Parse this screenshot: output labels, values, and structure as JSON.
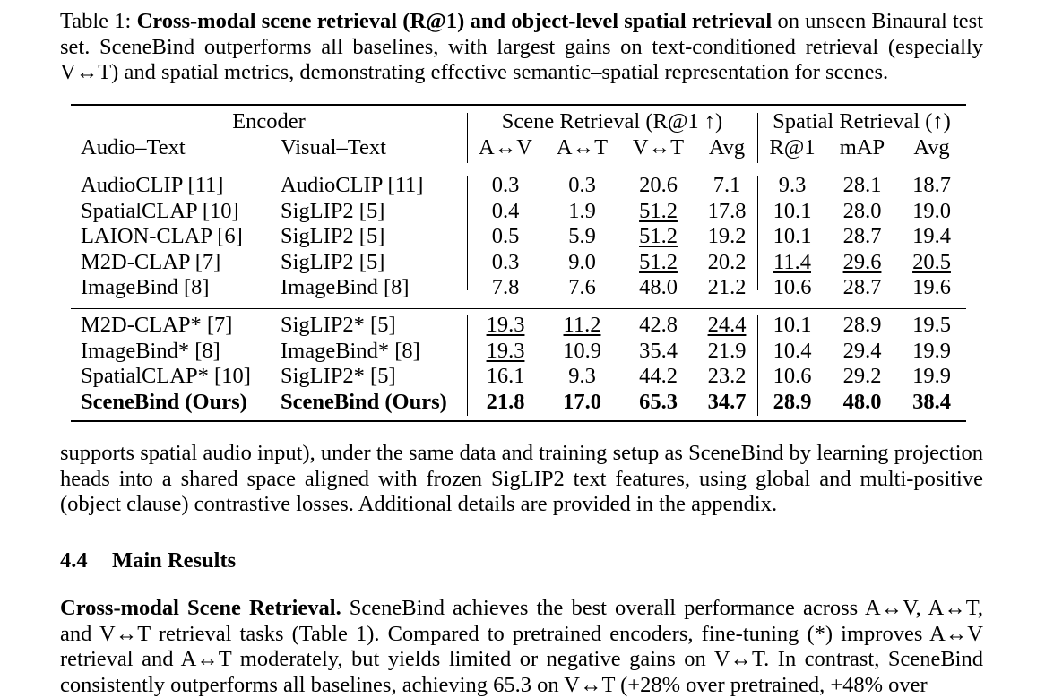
{
  "caption": {
    "label": "Table 1:",
    "bold_title": "Cross-modal scene retrieval (R@1) and object-level spatial retrieval",
    "rest": "on unseen Binaural test set. SceneBind outperforms all baselines, with largest gains on text-conditioned retrieval (especially V↔T) and spatial metrics, demonstrating effective semantic–spatial representation for scenes."
  },
  "table": {
    "group_headers": {
      "encoder": "Encoder",
      "scene": "Scene Retrieval (R@1 ↑)",
      "spatial": "Spatial Retrieval (↑)"
    },
    "columns": [
      "Audio–Text",
      "Visual–Text",
      "A↔V",
      "A↔T",
      "V↔T",
      "Avg",
      "R@1",
      "mAP",
      "Avg"
    ],
    "rows_pretrained": [
      {
        "audio": "AudioCLIP [11]",
        "visual": "AudioCLIP [11]",
        "av": "0.3",
        "at": "0.3",
        "vt": "20.6",
        "savg": "7.1",
        "r1": "9.3",
        "map": "28.1",
        "pavg": "18.7"
      },
      {
        "audio": "SpatialCLAP [10]",
        "visual": "SigLIP2 [5]",
        "av": "0.4",
        "at": "1.9",
        "vt": "51.2",
        "savg": "17.8",
        "r1": "10.1",
        "map": "28.0",
        "pavg": "19.0"
      },
      {
        "audio": "LAION-CLAP [6]",
        "visual": "SigLIP2 [5]",
        "av": "0.5",
        "at": "5.9",
        "vt": "51.2",
        "savg": "19.2",
        "r1": "10.1",
        "map": "28.7",
        "pavg": "19.4"
      },
      {
        "audio": "M2D-CLAP [7]",
        "visual": "SigLIP2 [5]",
        "av": "0.3",
        "at": "9.0",
        "vt": "51.2",
        "savg": "20.2",
        "r1": "11.4",
        "map": "29.6",
        "pavg": "20.5"
      },
      {
        "audio": "ImageBind [8]",
        "visual": "ImageBind [8]",
        "av": "7.8",
        "at": "7.6",
        "vt": "48.0",
        "savg": "21.2",
        "r1": "10.6",
        "map": "28.7",
        "pavg": "19.6"
      }
    ],
    "rows_finetuned": [
      {
        "audio": "M2D-CLAP* [7]",
        "visual": "SigLIP2* [5]",
        "av": "19.3",
        "at": "11.2",
        "vt": "42.8",
        "savg": "24.4",
        "r1": "10.1",
        "map": "28.9",
        "pavg": "19.5"
      },
      {
        "audio": "ImageBind* [8]",
        "visual": "ImageBind* [8]",
        "av": "19.3",
        "at": "10.9",
        "vt": "35.4",
        "savg": "21.9",
        "r1": "10.4",
        "map": "29.4",
        "pavg": "19.9"
      },
      {
        "audio": "SpatialCLAP* [10]",
        "visual": "SigLIP2* [5]",
        "av": "16.1",
        "at": "9.3",
        "vt": "44.2",
        "savg": "23.2",
        "r1": "10.6",
        "map": "29.2",
        "pavg": "19.9"
      },
      {
        "audio": "SceneBind (Ours)",
        "visual": "SceneBind (Ours)",
        "av": "21.8",
        "at": "17.0",
        "vt": "65.3",
        "savg": "34.7",
        "r1": "28.9",
        "map": "48.0",
        "pavg": "38.4"
      }
    ]
  },
  "paragraph1": "supports spatial audio input), under the same data and training setup as SceneBind by learning projection heads into a shared space aligned with frozen SigLIP2 text features, using global and multi-positive (object clause) contrastive losses. Additional details are provided in the appendix.",
  "section": {
    "number": "4.4",
    "title": "Main Results"
  },
  "paragraph2": {
    "lead": "Cross-modal Scene Retrieval.",
    "text": "SceneBind achieves the best overall performance across A↔V, A↔T, and V↔T retrieval tasks (Table 1). Compared to pretrained encoders, fine-tuning (*) improves A↔V retrieval and A↔T moderately, but yields limited or negative gains on V↔T. In contrast, SceneBind consistently outperforms all baselines, achieving 65.3 on V↔T (+28% over pretrained, +48% over"
  }
}
